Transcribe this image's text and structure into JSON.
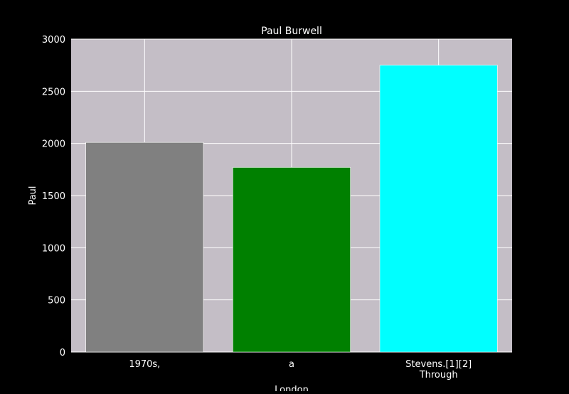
{
  "chart_data": {
    "type": "bar",
    "title": "Paul Burwell",
    "xlabel": "London",
    "ylabel": "Paul",
    "categories": [
      "1970s,",
      "a",
      "Stevens.[1][2]\nThrough"
    ],
    "values": [
      2010,
      1770,
      2750
    ],
    "bar_colors": [
      "#808080",
      "#008000",
      "#00ffff"
    ],
    "ylim": [
      0,
      3000
    ],
    "yticks": [
      0,
      500,
      1000,
      1500,
      2000,
      2500,
      3000
    ],
    "grid": true,
    "colors": {
      "background": "#000000",
      "plot_background": "#c4bec6",
      "grid": "#ffffff",
      "text": "#ffffff"
    }
  }
}
